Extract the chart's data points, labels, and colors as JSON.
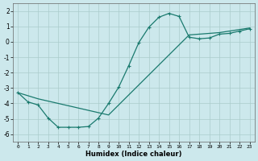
{
  "title": "",
  "xlabel": "Humidex (Indice chaleur)",
  "background_color": "#cce8ec",
  "grid_color": "#aacccc",
  "line_color": "#1a7a6e",
  "xlim": [
    -0.5,
    23.5
  ],
  "ylim": [
    -6.5,
    2.5
  ],
  "x_ticks": [
    0,
    1,
    2,
    3,
    4,
    5,
    6,
    7,
    8,
    9,
    10,
    11,
    12,
    13,
    14,
    15,
    16,
    17,
    18,
    19,
    20,
    21,
    22,
    23
  ],
  "y_ticks": [
    -6,
    -5,
    -4,
    -3,
    -2,
    -1,
    0,
    1,
    2
  ],
  "line1_x": [
    0,
    1,
    2,
    3,
    4,
    5,
    6,
    7,
    8,
    9,
    10,
    11,
    12,
    13,
    14,
    15,
    16,
    17,
    18,
    19,
    20,
    21,
    22,
    23
  ],
  "line1_y": [
    -3.3,
    -3.9,
    -4.1,
    -4.95,
    -5.55,
    -5.55,
    -5.55,
    -5.5,
    -4.95,
    -4.0,
    -2.95,
    -1.55,
    -0.05,
    0.95,
    1.6,
    1.85,
    1.65,
    0.3,
    0.2,
    0.25,
    0.5,
    0.55,
    0.7,
    0.85
  ],
  "line2_x": [
    0,
    1,
    2,
    3,
    4,
    5,
    6,
    7,
    8,
    9,
    10,
    11,
    12,
    13,
    14,
    15,
    16,
    17,
    18,
    19,
    20,
    21,
    22,
    23
  ],
  "line2_y": [
    -3.3,
    -3.5,
    -3.7,
    -3.85,
    -4.0,
    -4.15,
    -4.3,
    -4.45,
    -4.6,
    -4.75,
    -4.1,
    -3.45,
    -2.8,
    -2.15,
    -1.5,
    -0.85,
    -0.2,
    0.45,
    0.5,
    0.55,
    0.6,
    0.7,
    0.8,
    0.9
  ]
}
